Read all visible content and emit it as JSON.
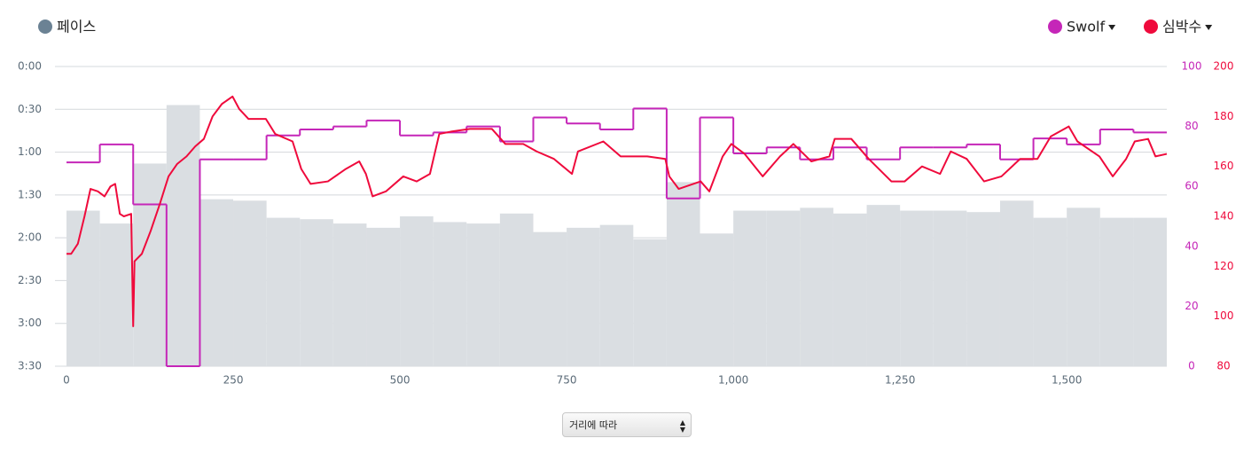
{
  "chart_data": {
    "type": "combo",
    "xlim": [
      0,
      1650
    ],
    "xticks": [
      0,
      250,
      500,
      750,
      {
        "value": 1000,
        "label": "1,000"
      },
      {
        "value": 1250,
        "label": "1,250"
      },
      {
        "value": 1500,
        "label": "1,500"
      }
    ],
    "ylim": [
      210,
      0
    ],
    "yticks": [
      {
        "value": 0,
        "label": "0:00"
      },
      {
        "value": 30,
        "label": "0:30"
      },
      {
        "value": 60,
        "label": "1:00"
      },
      {
        "value": 90,
        "label": "1:30"
      },
      {
        "value": 120,
        "label": "2:00"
      },
      {
        "value": 150,
        "label": "2:30"
      },
      {
        "value": 180,
        "label": "3:00"
      },
      {
        "value": 210,
        "label": "3:30"
      }
    ],
    "y2lim": [
      0,
      100
    ],
    "y2ticks": [
      0,
      20,
      40,
      60,
      80,
      100
    ],
    "y3lim": [
      80,
      200
    ],
    "y3ticks": [
      80,
      100,
      120,
      140,
      160,
      180,
      200
    ],
    "grid": true,
    "series": [
      {
        "name": "페이스",
        "type": "bar",
        "color": "#dadee2",
        "legend_color": "#6b8294",
        "bins": [
          0,
          50,
          100,
          150,
          200,
          250,
          300,
          350,
          400,
          450,
          500,
          550,
          600,
          650,
          700,
          750,
          800,
          850,
          900,
          950,
          1000,
          1050,
          1100,
          1150,
          1200,
          1250,
          1300,
          1350,
          1400,
          1450,
          1500,
          1550,
          1600,
          1650
        ],
        "values": [
          101,
          110,
          68,
          27,
          93,
          94,
          106,
          107,
          110,
          113,
          105,
          109,
          110,
          103,
          116,
          113,
          111,
          121,
          81,
          117,
          101,
          101,
          99,
          103,
          97,
          101,
          101,
          102,
          94,
          106,
          99,
          106,
          106
        ]
      },
      {
        "name": "Swolf",
        "type": "step",
        "axis": "y2",
        "color": "#c526b8",
        "bins": [
          0,
          50,
          100,
          150,
          200,
          250,
          300,
          350,
          400,
          450,
          500,
          550,
          600,
          650,
          700,
          750,
          800,
          850,
          900,
          950,
          1000,
          1050,
          1100,
          1150,
          1200,
          1250,
          1300,
          1350,
          1400,
          1450,
          1500,
          1550,
          1600,
          1650
        ],
        "values": [
          68,
          74,
          54,
          0,
          69,
          69,
          77,
          79,
          80,
          82,
          77,
          78,
          80,
          75,
          83,
          81,
          79,
          86,
          56,
          83,
          71,
          73,
          69,
          73,
          69,
          73,
          73,
          74,
          69,
          76,
          74,
          79,
          78
        ]
      },
      {
        "name": "심박수",
        "type": "line",
        "axis": "y3",
        "color": "#ef0a3c",
        "x": [
          0,
          7,
          17,
          27,
          36,
          47,
          57,
          66,
          73,
          80,
          86,
          97,
          100,
          102,
          113,
          126,
          140,
          153,
          166,
          180,
          193,
          206,
          219,
          233,
          249,
          259,
          273,
          299,
          313,
          339,
          352,
          366,
          392,
          419,
          439,
          449,
          459,
          479,
          505,
          525,
          545,
          559,
          578,
          605,
          638,
          658,
          685,
          705,
          731,
          758,
          767,
          805,
          831,
          871,
          898,
          904,
          918,
          951,
          964,
          984,
          997,
          1017,
          1044,
          1070,
          1090,
          1117,
          1144,
          1152,
          1177,
          1203,
          1237,
          1257,
          1283,
          1310,
          1326,
          1350,
          1376,
          1402,
          1430,
          1456,
          1476,
          1503,
          1516,
          1549,
          1569,
          1589,
          1602,
          1622,
          1633,
          1650
        ],
        "values": [
          125,
          125,
          129,
          140,
          151,
          150,
          148,
          152,
          153,
          141,
          140,
          141,
          96,
          122,
          125,
          134,
          145,
          156,
          161,
          164,
          168,
          171,
          180,
          185,
          188,
          183,
          179,
          179,
          173,
          170,
          159,
          153,
          154,
          159,
          162,
          157,
          148,
          150,
          156,
          154,
          157,
          173,
          174,
          175,
          175,
          169,
          169,
          166,
          163,
          157,
          166,
          170,
          164,
          164,
          163,
          156,
          151,
          154,
          150,
          164,
          169,
          165,
          156,
          164,
          169,
          162,
          164,
          171,
          171,
          163,
          154,
          154,
          160,
          157,
          166,
          163,
          154,
          156,
          163,
          163,
          172,
          176,
          170,
          164,
          156,
          163,
          170,
          171,
          164,
          165
        ]
      }
    ]
  },
  "controls": {
    "x_mode": "거리에 따라"
  }
}
